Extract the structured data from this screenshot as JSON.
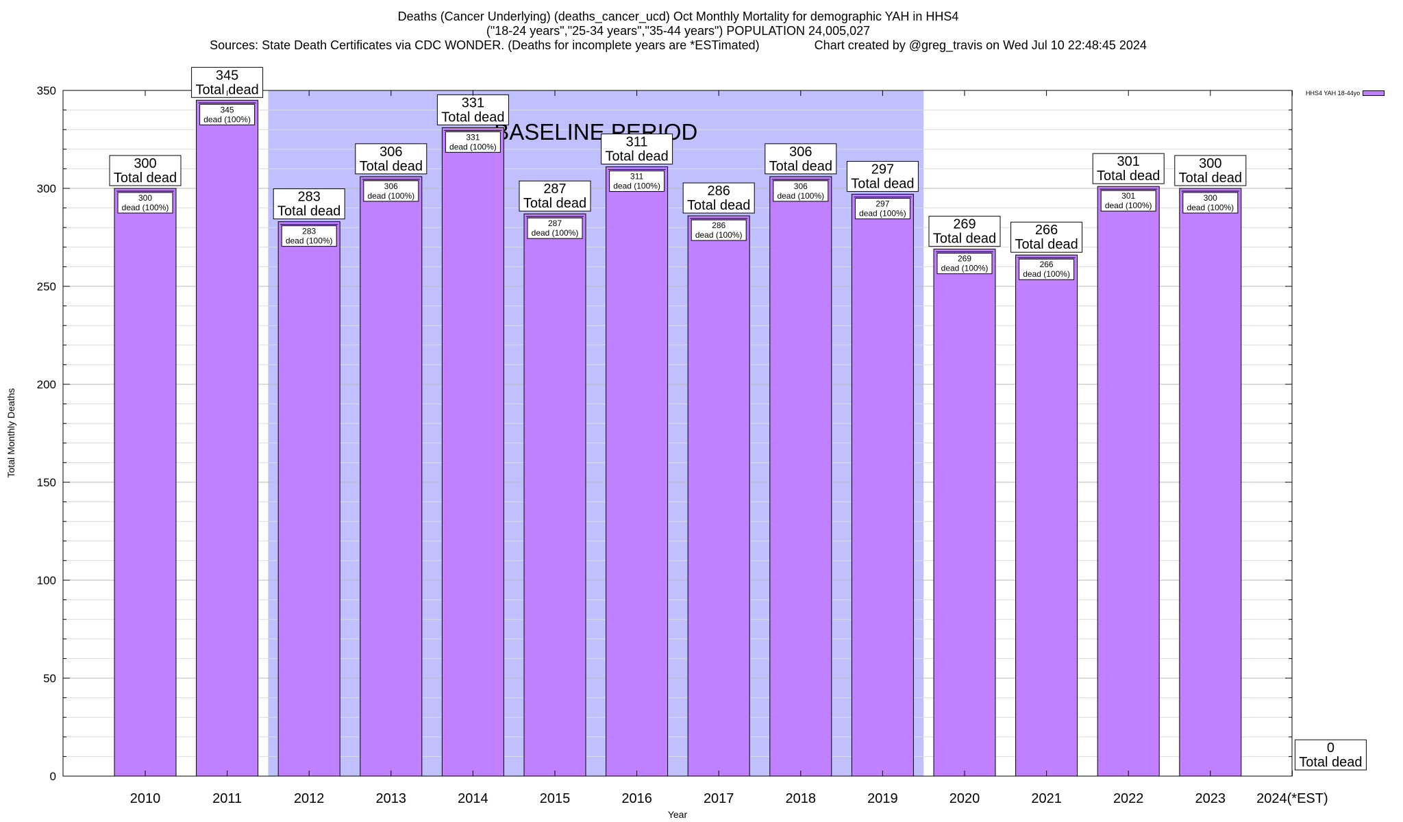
{
  "title_lines": [
    "Deaths (Cancer Underlying) (deaths_cancer_ucd) Oct Monthly Mortality for demographic YAH in HHS4",
    "(\"18-24 years\",\"25-34 years\",\"35-44 years\") POPULATION 24,005,027",
    "Sources: State Death Certificates via CDC WONDER. (Deaths for incomplete years are *ESTimated)                Chart created by @greg_travis on Wed Jul 10 22:48:45 2024"
  ],
  "legend": {
    "label": "HHS4 YAH 18-44yo"
  },
  "colors": {
    "bar": "#c080ff",
    "baseline": "#c0c0ff",
    "grid": "#c8c8c8"
  },
  "chart_data": {
    "type": "bar",
    "categories": [
      "2010",
      "2011",
      "2012",
      "2013",
      "2014",
      "2015",
      "2016",
      "2017",
      "2018",
      "2019",
      "2020",
      "2021",
      "2022",
      "2023",
      "2024(*EST)"
    ],
    "series": [
      {
        "name": "HHS4 YAH 18-44yo",
        "values": [
          300,
          345,
          283,
          306,
          331,
          287,
          311,
          286,
          306,
          297,
          269,
          266,
          301,
          300,
          0
        ]
      }
    ],
    "total_label_suffix": "Total dead",
    "inner_label_suffix": "dead (100%)",
    "xlabel": "Year",
    "ylabel": "Total Monthly Deaths",
    "ylim": [
      0,
      350
    ],
    "yticks": [
      0,
      50,
      100,
      150,
      200,
      250,
      300,
      350
    ],
    "baseline": {
      "label": "BASELINE PERIOD",
      "start": "2012",
      "end": "2019"
    },
    "grid": true,
    "legend_position": "top-right"
  }
}
